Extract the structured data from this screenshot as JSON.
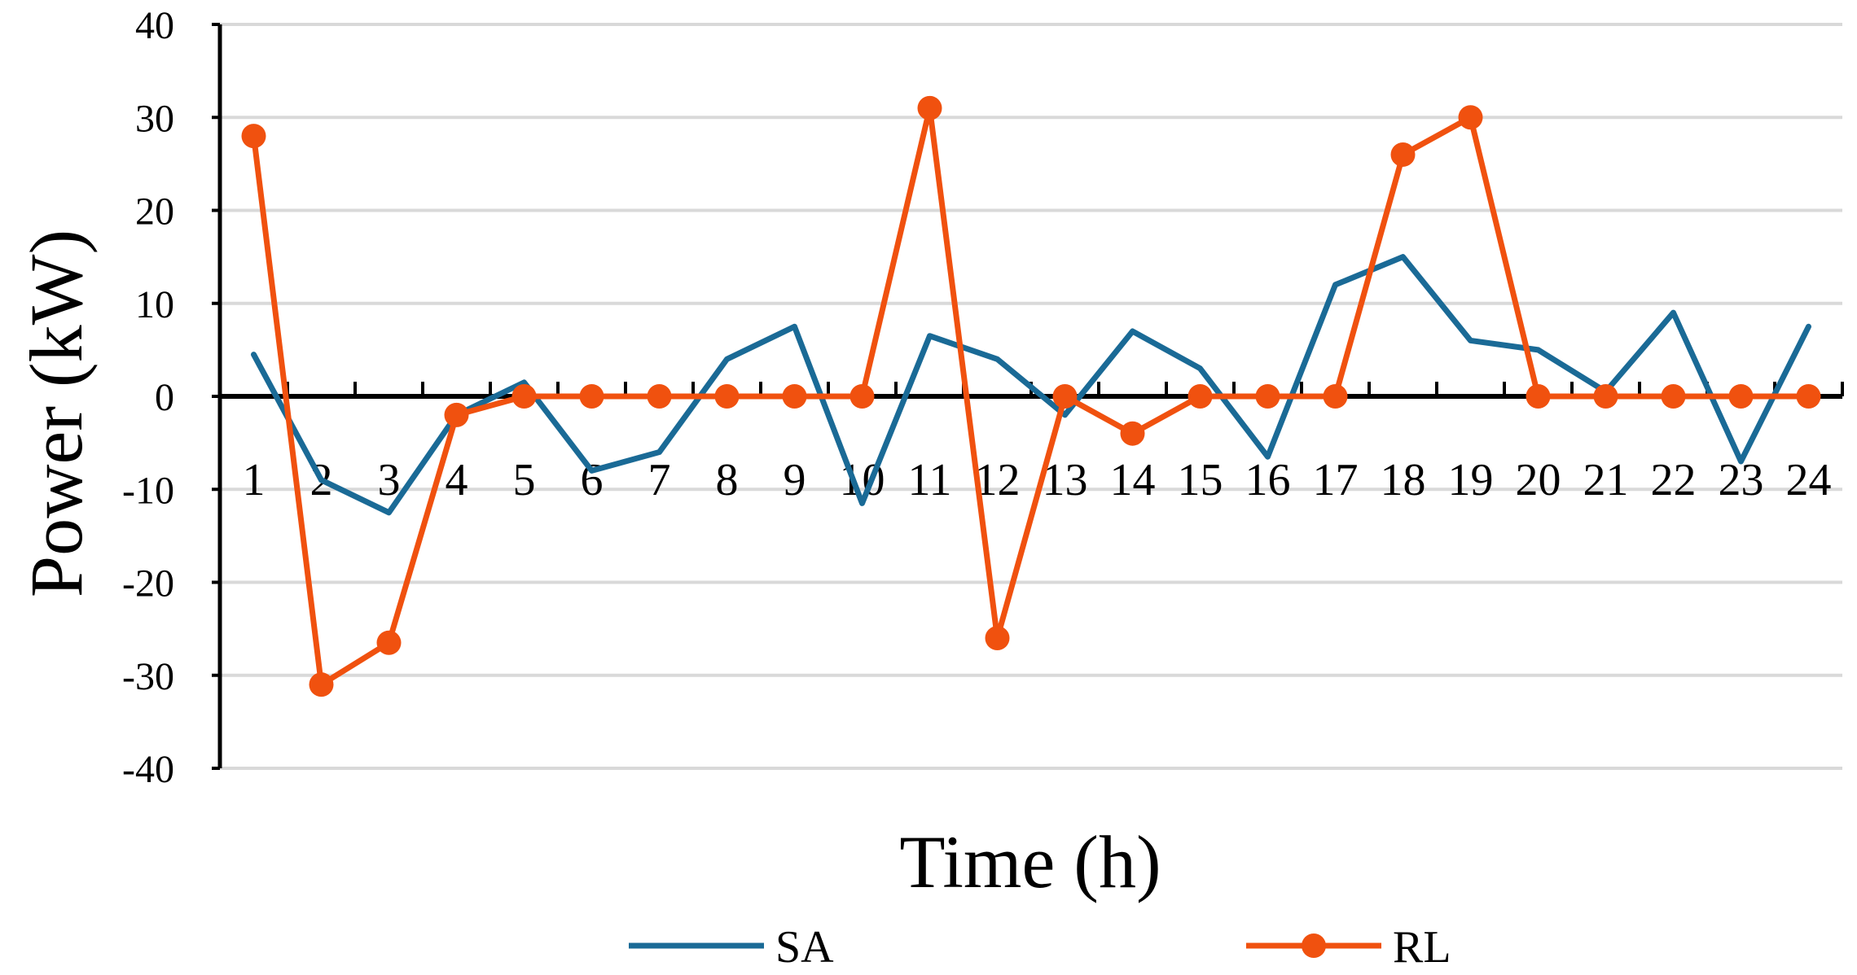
{
  "chart_data": {
    "type": "line",
    "title": "",
    "xlabel": "Time (h)",
    "ylabel": "Power (kW)",
    "categories": [
      "1",
      "2",
      "3",
      "4",
      "5",
      "6",
      "7",
      "8",
      "9",
      "10",
      "11",
      "12",
      "13",
      "14",
      "15",
      "16",
      "17",
      "18",
      "19",
      "20",
      "21",
      "22",
      "23",
      "24"
    ],
    "ylim": [
      -40,
      40
    ],
    "yticks": [
      "-40",
      "-30",
      "-20",
      "-10",
      "0",
      "10",
      "20",
      "30",
      "40"
    ],
    "grid": true,
    "legend_position": "bottom",
    "series": [
      {
        "name": "SA",
        "color": "#1a6a96",
        "marker": false,
        "values": [
          4.5,
          -9,
          -12.5,
          -2,
          1.5,
          -8,
          -6,
          4,
          7.5,
          -11.5,
          6.5,
          4,
          -2,
          7,
          3,
          -6.5,
          12,
          15,
          6,
          5,
          0.5,
          9,
          -7,
          7.5
        ]
      },
      {
        "name": "RL",
        "color": "#f0510f",
        "marker": true,
        "values": [
          28,
          -31,
          -26.5,
          -2,
          0,
          0,
          0,
          0,
          0,
          0,
          31,
          -26,
          0,
          -4,
          0,
          0,
          0,
          26,
          30,
          0,
          0,
          0,
          0,
          0
        ]
      }
    ]
  }
}
